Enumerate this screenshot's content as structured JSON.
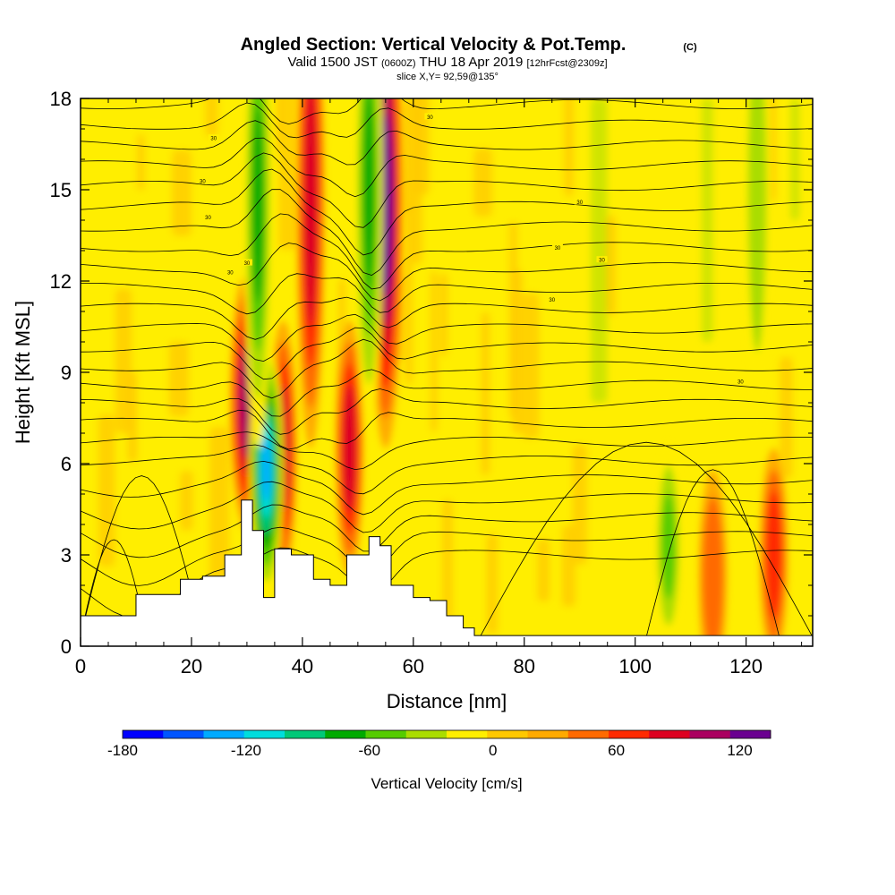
{
  "header": {
    "title_main": "Angled Section: Vertical Velocity & Pot.Temp.",
    "title_tag": "(C)",
    "valid_a": "Valid 1500 JST",
    "valid_b": "(0600Z)",
    "valid_c": "THU 18 Apr 2019",
    "valid_d": "[12hrFcst@2309z]",
    "slice": "slice X,Y= 92,59@135°"
  },
  "chart_data": {
    "type": "heatmap",
    "xlabel": "Distance [nm]",
    "ylabel": "Height [Kft MSL]",
    "xlim": [
      0,
      132
    ],
    "ylim": [
      0,
      18
    ],
    "x_ticks": [
      "0",
      "20",
      "40",
      "60",
      "80",
      "100",
      "120"
    ],
    "y_ticks": [
      "0",
      "3",
      "6",
      "9",
      "12",
      "15",
      "18"
    ],
    "colorbar": {
      "label": "Vertical Velocity [cm/s]",
      "range": [
        -180,
        135
      ],
      "ticks": [
        "-180",
        "-120",
        "-60",
        "0",
        "60",
        "120"
      ],
      "colors": [
        "#0000ff",
        "#0055ff",
        "#00aaff",
        "#00dddd",
        "#00c878",
        "#00aa00",
        "#55cc00",
        "#aadd00",
        "#ffee00",
        "#ffc800",
        "#ffaa00",
        "#ff6a00",
        "#ff2a00",
        "#dd0020",
        "#aa0060",
        "#6a0090"
      ]
    },
    "terrain_profile": [
      [
        0,
        1
      ],
      [
        5,
        1
      ],
      [
        10,
        1.7
      ],
      [
        15,
        1.7
      ],
      [
        18,
        2.2
      ],
      [
        22,
        2.3
      ],
      [
        26,
        3
      ],
      [
        29,
        4.8
      ],
      [
        31,
        3.8
      ],
      [
        33,
        1.6
      ],
      [
        35,
        3.2
      ],
      [
        38,
        3.0
      ],
      [
        42,
        2.2
      ],
      [
        45,
        2.0
      ],
      [
        48,
        3.0
      ],
      [
        52,
        3.6
      ],
      [
        54,
        3.3
      ],
      [
        56,
        2.0
      ],
      [
        58,
        2.0
      ],
      [
        60,
        1.6
      ],
      [
        63,
        1.5
      ],
      [
        66,
        1.0
      ],
      [
        69,
        0.6
      ],
      [
        71,
        0.35
      ],
      [
        132,
        0.35
      ]
    ],
    "updraft_cells": [
      {
        "x": 30,
        "z": 8.0,
        "value": 110
      },
      {
        "x": 36.5,
        "z": 6.5,
        "value": 90
      },
      {
        "x": 48.5,
        "z": 6.5,
        "value": 95
      },
      {
        "x": 41.5,
        "z": 14.5,
        "value": 85
      },
      {
        "x": 55,
        "z": 14.5,
        "value": 125
      },
      {
        "x": 114,
        "z": 2.3,
        "value": 55
      },
      {
        "x": 125,
        "z": 3.0,
        "value": 70
      }
    ],
    "downdraft_cells": [
      {
        "x": 33.5,
        "z": 5.8,
        "value": -140
      },
      {
        "x": 32,
        "z": 14.5,
        "value": -65
      },
      {
        "x": 52,
        "z": 15,
        "value": -65
      },
      {
        "x": 106,
        "z": 3.3,
        "value": -60
      },
      {
        "x": 122,
        "z": 15,
        "value": -40
      }
    ],
    "isentrope_label": "30"
  }
}
